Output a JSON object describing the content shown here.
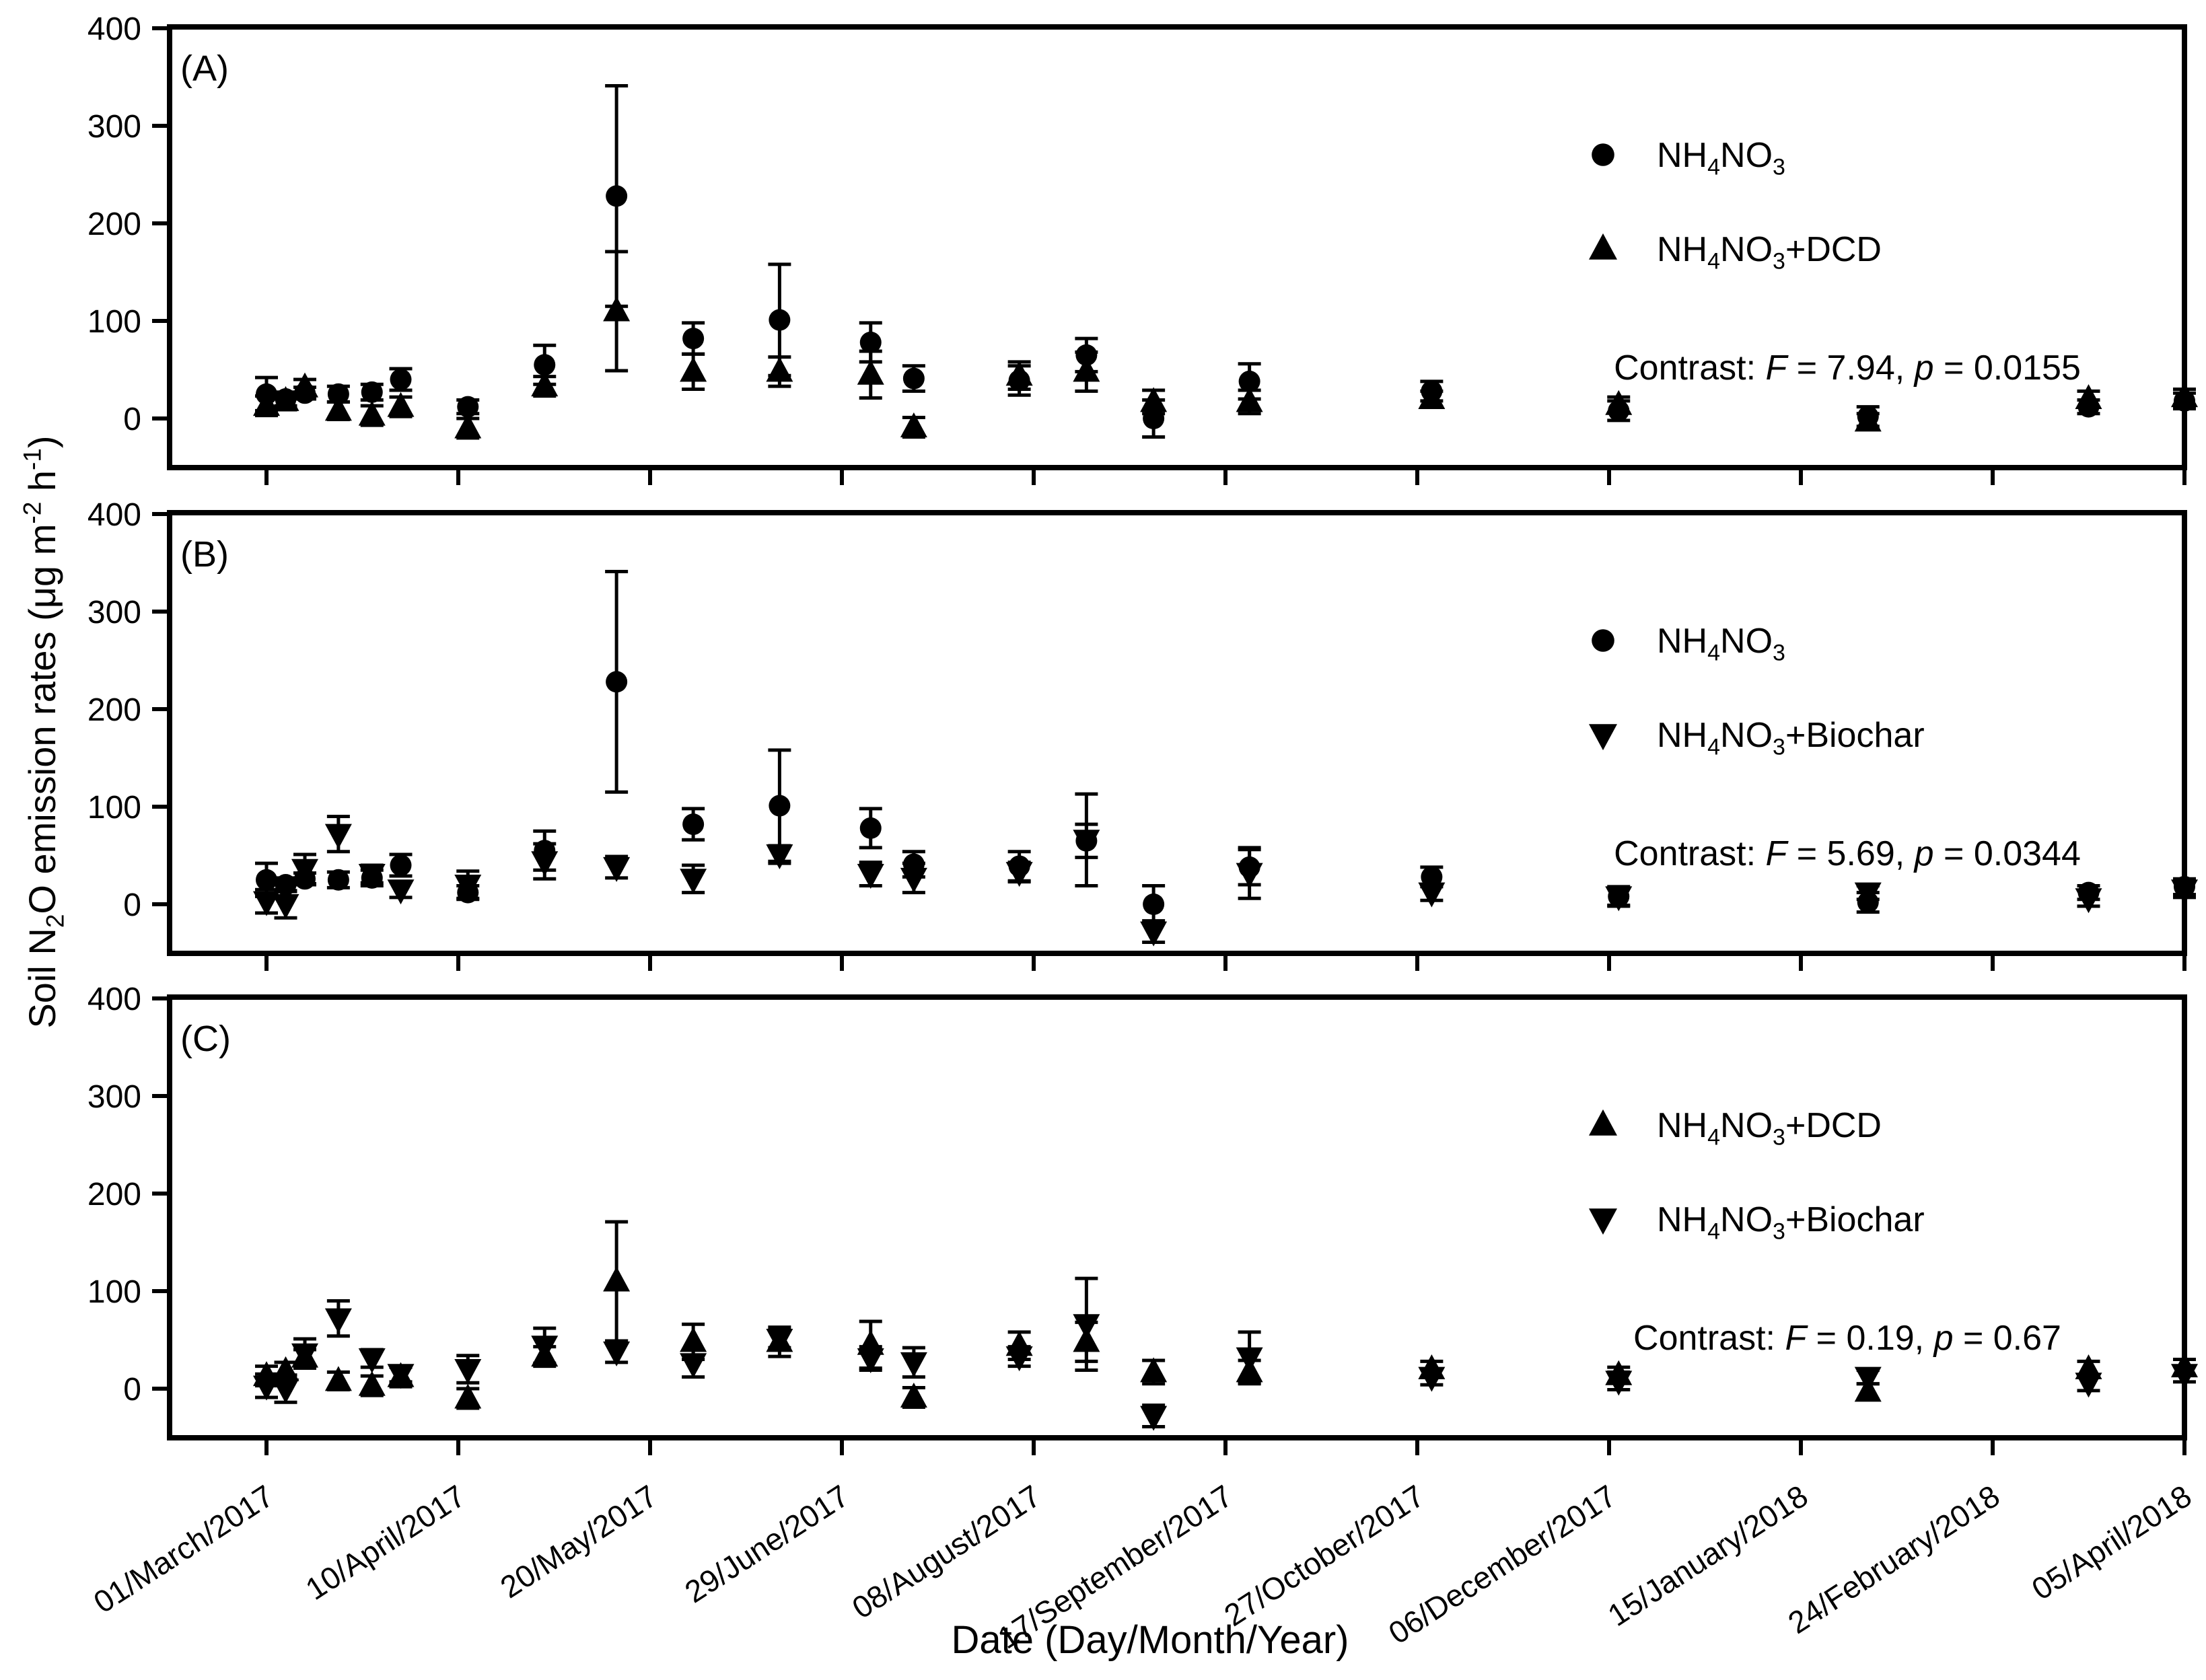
{
  "figure": {
    "xlabel": "Date (Day/Month/Year)",
    "ylabel_segments": [
      {
        "t": "Soil N"
      },
      {
        "t": "2",
        "s": "sub"
      },
      {
        "t": "O emission rates ("
      },
      {
        "t": "μg m"
      },
      {
        "t": "-2",
        "s": "sup"
      },
      {
        "t": " h"
      },
      {
        "t": "-1",
        "s": "sup"
      },
      {
        "t": ")"
      }
    ],
    "y_ticks": [
      0,
      100,
      200,
      300,
      400
    ],
    "x_tick_days": [
      0,
      40,
      80,
      120,
      160,
      200,
      240,
      280,
      320,
      360,
      400
    ],
    "x_tick_labels": [
      "01/March/2017",
      "10/April/2017",
      "20/May/2017",
      "29/June/2017",
      "08/August/2017",
      "17/September/2017",
      "27/October/2017",
      "06/December/2017",
      "15/January/2018",
      "24/February/2018",
      "05/April/2018"
    ]
  },
  "chart_data": {
    "type": "scatter",
    "x_unit": "days since 01/March/2017",
    "y_range": [
      -50,
      402
    ],
    "grid": false,
    "series": [
      {
        "id": "nh4no3",
        "marker": "circle",
        "label_segments": [
          {
            "t": "NH"
          },
          {
            "t": "4",
            "s": "sub"
          },
          {
            "t": "NO"
          },
          {
            "t": "3",
            "s": "sub"
          }
        ],
        "points": [
          {
            "day": 0,
            "y": 25,
            "e": 17
          },
          {
            "day": 4,
            "y": 20,
            "e": 7
          },
          {
            "day": 8,
            "y": 26,
            "e": 6
          },
          {
            "day": 15,
            "y": 25,
            "e": 8
          },
          {
            "day": 22,
            "y": 27,
            "e": 8
          },
          {
            "day": 28,
            "y": 40,
            "e": 11
          },
          {
            "day": 42,
            "y": 12,
            "e": 7
          },
          {
            "day": 58,
            "y": 55,
            "e": 20
          },
          {
            "day": 73,
            "y": 228,
            "e": 113
          },
          {
            "day": 89,
            "y": 82,
            "e": 16
          },
          {
            "day": 107,
            "y": 101,
            "e": 57
          },
          {
            "day": 126,
            "y": 78,
            "e": 20
          },
          {
            "day": 135,
            "y": 41,
            "e": 13
          },
          {
            "day": 157,
            "y": 39,
            "e": 15
          },
          {
            "day": 171,
            "y": 65,
            "e": 17
          },
          {
            "day": 185,
            "y": 0,
            "e": 19
          },
          {
            "day": 205,
            "y": 38,
            "e": 18
          },
          {
            "day": 243,
            "y": 28,
            "e": 10
          },
          {
            "day": 282,
            "y": 8,
            "e": 10
          },
          {
            "day": 334,
            "y": 2,
            "e": 10
          },
          {
            "day": 380,
            "y": 12,
            "e": 7
          },
          {
            "day": 400,
            "y": 18,
            "e": 8
          }
        ]
      },
      {
        "id": "dcd",
        "marker": "triangle-up",
        "label_segments": [
          {
            "t": "NH"
          },
          {
            "t": "4",
            "s": "sub"
          },
          {
            "t": "NO"
          },
          {
            "t": "3",
            "s": "sub"
          },
          {
            "t": "+DCD"
          }
        ],
        "points": [
          {
            "day": 0,
            "y": 13,
            "e": 10
          },
          {
            "day": 4,
            "y": 18,
            "e": 9
          },
          {
            "day": 8,
            "y": 32,
            "e": 8
          },
          {
            "day": 15,
            "y": 8,
            "e": 9
          },
          {
            "day": 22,
            "y": 3,
            "e": 10
          },
          {
            "day": 28,
            "y": 12,
            "e": 10
          },
          {
            "day": 42,
            "y": -10,
            "e": 10
          },
          {
            "day": 58,
            "y": 33,
            "e": 10
          },
          {
            "day": 73,
            "y": 110,
            "e": 61
          },
          {
            "day": 89,
            "y": 48,
            "e": 18
          },
          {
            "day": 107,
            "y": 48,
            "e": 15
          },
          {
            "day": 126,
            "y": 45,
            "e": 24
          },
          {
            "day": 135,
            "y": -9,
            "e": 10
          },
          {
            "day": 157,
            "y": 44,
            "e": 14
          },
          {
            "day": 171,
            "y": 48,
            "e": 20
          },
          {
            "day": 185,
            "y": 17,
            "e": 12
          },
          {
            "day": 205,
            "y": 17,
            "e": 12
          },
          {
            "day": 243,
            "y": 20,
            "e": 8
          },
          {
            "day": 282,
            "y": 14,
            "e": 8
          },
          {
            "day": 334,
            "y": -3,
            "e": 8
          },
          {
            "day": 380,
            "y": 20,
            "e": 8
          },
          {
            "day": 400,
            "y": 22,
            "e": 8
          }
        ]
      },
      {
        "id": "biochar",
        "marker": "triangle-down",
        "label_segments": [
          {
            "t": "NH"
          },
          {
            "t": "4",
            "s": "sub"
          },
          {
            "t": "NO"
          },
          {
            "t": "3",
            "s": "sub"
          },
          {
            "t": "+Biochar"
          }
        ],
        "points": [
          {
            "day": 0,
            "y": 3,
            "e": 12
          },
          {
            "day": 4,
            "y": 0,
            "e": 14
          },
          {
            "day": 8,
            "y": 36,
            "e": 15
          },
          {
            "day": 15,
            "y": 72,
            "e": 18
          },
          {
            "day": 22,
            "y": 31,
            "e": 9
          },
          {
            "day": 28,
            "y": 15,
            "e": 8
          },
          {
            "day": 42,
            "y": 20,
            "e": 14
          },
          {
            "day": 58,
            "y": 44,
            "e": 18
          },
          {
            "day": 73,
            "y": 38,
            "e": 11
          },
          {
            "day": 89,
            "y": 26,
            "e": 14
          },
          {
            "day": 107,
            "y": 51,
            "e": 9
          },
          {
            "day": 126,
            "y": 31,
            "e": 12
          },
          {
            "day": 135,
            "y": 27,
            "e": 15
          },
          {
            "day": 157,
            "y": 33,
            "e": 10
          },
          {
            "day": 171,
            "y": 66,
            "e": 47
          },
          {
            "day": 185,
            "y": -28,
            "e": 11
          },
          {
            "day": 205,
            "y": 32,
            "e": 26
          },
          {
            "day": 243,
            "y": 12,
            "e": 8
          },
          {
            "day": 282,
            "y": 8,
            "e": 9
          },
          {
            "day": 334,
            "y": 12,
            "e": 7
          },
          {
            "day": 380,
            "y": 6,
            "e": 8
          },
          {
            "day": 400,
            "y": 15,
            "e": 8
          }
        ]
      }
    ],
    "panels": [
      {
        "id": "A",
        "label": "(A)",
        "series": [
          "nh4no3",
          "dcd"
        ],
        "contrast_segments": [
          {
            "t": "Contrast: "
          },
          {
            "t": "F",
            "s": "i"
          },
          {
            "t": " = 7.94, "
          },
          {
            "t": "p",
            "s": "i"
          },
          {
            "t": " = 0.0155"
          }
        ]
      },
      {
        "id": "B",
        "label": "(B)",
        "series": [
          "nh4no3",
          "biochar"
        ],
        "contrast_segments": [
          {
            "t": "Contrast: "
          },
          {
            "t": "F",
            "s": "i"
          },
          {
            "t": " = 5.69, "
          },
          {
            "t": "p",
            "s": "i"
          },
          {
            "t": " = 0.0344"
          }
        ]
      },
      {
        "id": "C",
        "label": "(C)",
        "series": [
          "dcd",
          "biochar"
        ],
        "contrast_segments": [
          {
            "t": "Contrast: "
          },
          {
            "t": "F",
            "s": "i"
          },
          {
            "t": " = 0.19, "
          },
          {
            "t": "p",
            "s": "i"
          },
          {
            "t": " = 0.67"
          }
        ]
      }
    ]
  }
}
